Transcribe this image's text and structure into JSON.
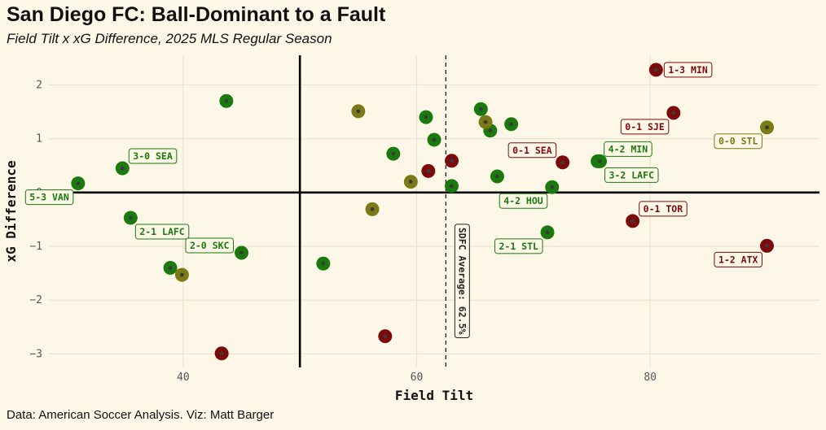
{
  "header": {
    "title": "San Diego FC: Ball-Dominant to a Fault",
    "subtitle": "Field Tilt x xG Difference, 2025 MLS Regular Season"
  },
  "footer": {
    "caption": "Data: American Soccer Analysis. Viz: Matt Barger"
  },
  "colors": {
    "background": "#fdf7e8",
    "win": "#1a7a0d",
    "draw": "#7c7a16",
    "loss": "#7d0a0a",
    "grid": "#ece2cf"
  },
  "chart_data": {
    "type": "scatter",
    "xlabel": "Field Tilt",
    "ylabel": "xG Difference",
    "xlim": [
      28.5,
      94.5
    ],
    "ylim": [
      -3.25,
      2.55
    ],
    "x_ticks": [
      40,
      60,
      80
    ],
    "x_tick_labels": [
      "40",
      "60",
      "80"
    ],
    "y_ticks": [
      -3,
      -2,
      -1,
      0,
      1,
      2
    ],
    "y_tick_labels": [
      "−3",
      "−2",
      "−1",
      "0",
      "1",
      "2"
    ],
    "x_reference_line": 50,
    "y_reference_line": 0,
    "average": {
      "x": 62.5,
      "label": "SDFC Average: 62.5%"
    },
    "series": [
      {
        "name": "win",
        "points": [
          {
            "x": 31.0,
            "y": 0.17,
            "label": "5-3 VAN",
            "label_pos": "below-left"
          },
          {
            "x": 34.8,
            "y": 0.45,
            "label": "3-0 SEA",
            "label_pos": "above-right"
          },
          {
            "x": 35.5,
            "y": -0.47,
            "label": "2-1 LAFC",
            "label_pos": "below-right"
          },
          {
            "x": 38.9,
            "y": -1.4
          },
          {
            "x": 43.7,
            "y": 1.7
          },
          {
            "x": 45.0,
            "y": -1.12,
            "label": "2-0 SKC",
            "label_pos": "left"
          },
          {
            "x": 52.0,
            "y": -1.32
          },
          {
            "x": 58.0,
            "y": 0.72
          },
          {
            "x": 60.8,
            "y": 1.4
          },
          {
            "x": 61.5,
            "y": 0.98
          },
          {
            "x": 63.0,
            "y": 0.12
          },
          {
            "x": 65.5,
            "y": 1.55
          },
          {
            "x": 66.3,
            "y": 1.15
          },
          {
            "x": 66.9,
            "y": 0.3
          },
          {
            "x": 68.1,
            "y": 1.27
          },
          {
            "x": 71.2,
            "y": -0.74,
            "label": "2-1 STL",
            "label_pos": "below-left"
          },
          {
            "x": 71.6,
            "y": 0.1,
            "label": "4-2 HOU",
            "label_pos": "below-left"
          },
          {
            "x": 75.5,
            "y": 0.58,
            "label": "4-2 MIN",
            "label_pos": "above-right"
          },
          {
            "x": 75.7,
            "y": 0.58,
            "label": "3-2 LAFC",
            "label_pos": "below-right"
          }
        ]
      },
      {
        "name": "draw",
        "points": [
          {
            "x": 39.9,
            "y": -1.53
          },
          {
            "x": 55.0,
            "y": 1.51
          },
          {
            "x": 56.2,
            "y": -0.31
          },
          {
            "x": 59.5,
            "y": 0.2
          },
          {
            "x": 65.9,
            "y": 1.31
          },
          {
            "x": 90.0,
            "y": 1.21,
            "label": "0-0 STL",
            "label_pos": "below-left"
          }
        ]
      },
      {
        "name": "loss",
        "points": [
          {
            "x": 43.3,
            "y": -2.99
          },
          {
            "x": 57.3,
            "y": -2.67
          },
          {
            "x": 61.0,
            "y": 0.4
          },
          {
            "x": 63.0,
            "y": 0.59
          },
          {
            "x": 72.5,
            "y": 0.56,
            "label": "0-1 SEA",
            "label_pos": "above-left"
          },
          {
            "x": 78.5,
            "y": -0.53,
            "label": "0-1 TOR",
            "label_pos": "above-right"
          },
          {
            "x": 80.5,
            "y": 2.28,
            "label": "1-3 MIN",
            "label_pos": "right"
          },
          {
            "x": 82.0,
            "y": 1.48,
            "label": "0-1 SJE",
            "label_pos": "below-left"
          },
          {
            "x": 90.0,
            "y": -0.99,
            "label": "1-2 ATX",
            "label_pos": "below-left"
          }
        ]
      }
    ]
  }
}
